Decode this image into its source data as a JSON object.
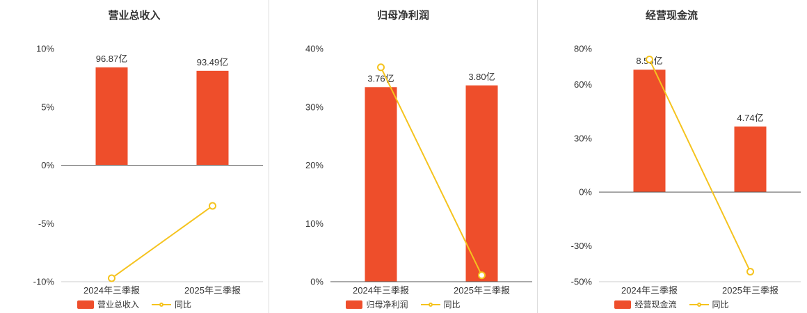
{
  "colors": {
    "bar": "#ee4e2b",
    "line": "#f5c31e",
    "marker_fill": "#ffffff",
    "title_text": "#333333",
    "axis_text": "#333333",
    "value_text": "#333333",
    "zero_line": "#555555",
    "baseline": "#cccccc",
    "separator": "#dddddd",
    "background": "#ffffff"
  },
  "chart_data": [
    {
      "type": "bar",
      "title": "营业总收入",
      "categories": [
        "2024年三季报",
        "2025年三季报"
      ],
      "unit": "亿",
      "series": [
        {
          "name": "营业总收入",
          "kind": "bar",
          "values": [
            96.87,
            93.49
          ],
          "labels": [
            "96.87亿",
            "93.49亿"
          ]
        },
        {
          "name": "同比",
          "kind": "line",
          "values_pct": [
            -9.7,
            -3.49
          ]
        }
      ],
      "bar_display_pct": [
        8.4,
        8.1
      ],
      "yticks_pct": [
        10,
        5,
        0,
        -5,
        -10
      ],
      "ylim": [
        -10,
        10
      ],
      "xlabel": "",
      "ylabel": "",
      "grid": false,
      "legend_position": "bottom"
    },
    {
      "type": "bar",
      "title": "归母净利润",
      "categories": [
        "2024年三季报",
        "2025年三季报"
      ],
      "unit": "亿",
      "series": [
        {
          "name": "归母净利润",
          "kind": "bar",
          "values": [
            3.76,
            3.8
          ],
          "labels": [
            "3.76亿",
            "3.80亿"
          ]
        },
        {
          "name": "同比",
          "kind": "line",
          "values_pct": [
            36.8,
            1.1
          ]
        }
      ],
      "bar_display_pct": [
        33.4,
        33.7
      ],
      "yticks_pct": [
        40,
        30,
        20,
        10,
        0
      ],
      "ylim": [
        0,
        40
      ],
      "xlabel": "",
      "ylabel": "",
      "grid": false,
      "legend_position": "bottom"
    },
    {
      "type": "bar",
      "title": "经营现金流",
      "categories": [
        "2024年三季报",
        "2025年三季报"
      ],
      "unit": "亿",
      "series": [
        {
          "name": "经营现金流",
          "kind": "bar",
          "values": [
            8.53,
            4.74
          ],
          "labels": [
            "8.53亿",
            "4.74亿"
          ]
        },
        {
          "name": "同比",
          "kind": "line",
          "values_pct": [
            74.0,
            -44.4
          ]
        }
      ],
      "bar_display_pct": [
        68.3,
        36.6
      ],
      "yticks_pct": [
        80,
        60,
        30,
        0,
        -30,
        -50
      ],
      "ylim": [
        -50,
        80
      ],
      "xlabel": "",
      "ylabel": "",
      "grid": false,
      "legend_position": "bottom"
    }
  ]
}
